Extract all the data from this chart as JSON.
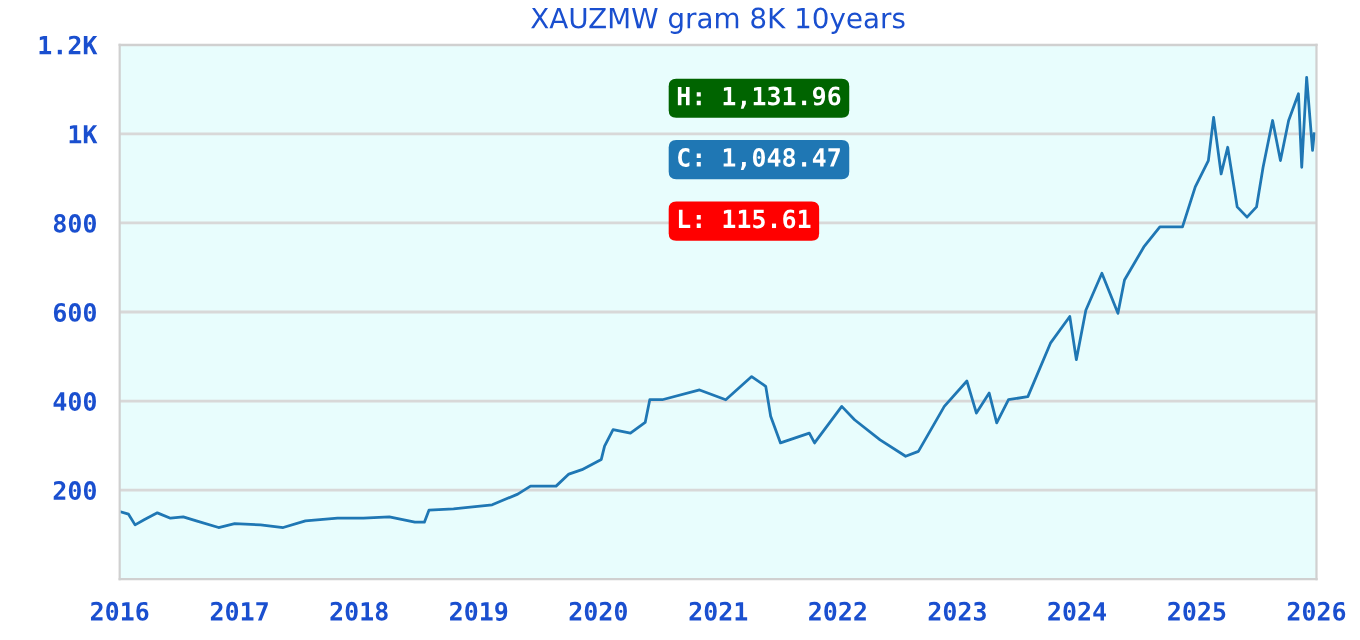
{
  "chart_data": {
    "type": "line",
    "title": "XAUZMW gram 8K 10years",
    "x": [
      "2016-01-01",
      "2016-01-28",
      "2016-02-17",
      "2016-03-17",
      "2016-04-25",
      "2016-06-04",
      "2016-07-13",
      "2016-08-22",
      "2016-10-29",
      "2016-12-17",
      "2017-03-06",
      "2017-05-14",
      "2017-07-21",
      "2017-10-27",
      "2018-01-14",
      "2018-04-03",
      "2018-06-20",
      "2018-07-19",
      "2018-08-02",
      "2018-10-16",
      "2019-02-11",
      "2019-03-12",
      "2019-04-30",
      "2019-06-08",
      "2019-08-25",
      "2019-10-03",
      "2019-11-12",
      "2020-01-10",
      "2020-01-20",
      "2020-02-15",
      "2020-04-08",
      "2020-05-23",
      "2020-06-06",
      "2020-07-14",
      "2020-11-05",
      "2021-01-24",
      "2021-04-13",
      "2021-05-26",
      "2021-06-10",
      "2021-07-10",
      "2021-10-06",
      "2021-10-22",
      "2022-01-13",
      "2022-02-21",
      "2022-05-10",
      "2022-07-27",
      "2022-09-04",
      "2022-11-22",
      "2023-01-30",
      "2023-02-28",
      "2023-04-08",
      "2023-05-01",
      "2023-06-06",
      "2023-08-04",
      "2023-10-12",
      "2023-12-10",
      "2023-12-30",
      "2024-01-28",
      "2024-03-17",
      "2024-05-05",
      "2024-05-25",
      "2024-07-23",
      "2024-09-10",
      "2024-11-18",
      "2024-12-27",
      "2025-02-05",
      "2025-02-21",
      "2025-03-16",
      "2025-04-05",
      "2025-05-04",
      "2025-06-03",
      "2025-07-02",
      "2025-07-22",
      "2025-08-20",
      "2025-09-13",
      "2025-10-08",
      "2025-11-07",
      "2025-11-17",
      "2025-12-02",
      "2025-12-20",
      "2025-12-25"
    ],
    "series": [
      {
        "color": "#1f77b4",
        "values": [
          152,
          146,
          122,
          134,
          149,
          137,
          140,
          131,
          116,
          125,
          122,
          116,
          131,
          137,
          137,
          140,
          128,
          128,
          155,
          158,
          167,
          176,
          191,
          209,
          209,
          236,
          246,
          269,
          299,
          336,
          328,
          352,
          403,
          403,
          425,
          403,
          455,
          433,
          366,
          306,
          328,
          306,
          388,
          358,
          313,
          276,
          287,
          388,
          445,
          373,
          418,
          351,
          403,
          410,
          530,
          590,
          493,
          604,
          687,
          597,
          672,
          746,
          791,
          791,
          881,
          940,
          1037,
          910,
          970,
          836,
          813,
          836,
          925,
          1030,
          940,
          1030,
          1090,
          925,
          1127,
          963,
          1000
        ]
      }
    ],
    "xlim": [
      "2016-01-01",
      "2026-01-01"
    ],
    "xticks": [
      "2016",
      "2017",
      "2018",
      "2019",
      "2020",
      "2021",
      "2022",
      "2023",
      "2024",
      "2025",
      "2026"
    ],
    "ylim": [
      0,
      1200
    ],
    "yticks": [
      200,
      400,
      600,
      800,
      {
        "value": 1000,
        "label": "1K"
      },
      {
        "value": 1200,
        "label": "1.2K"
      }
    ],
    "grid": "y",
    "annotations": [
      "H: 1,131.96",
      "C: 1,048.47",
      "L: 115.61"
    ]
  }
}
